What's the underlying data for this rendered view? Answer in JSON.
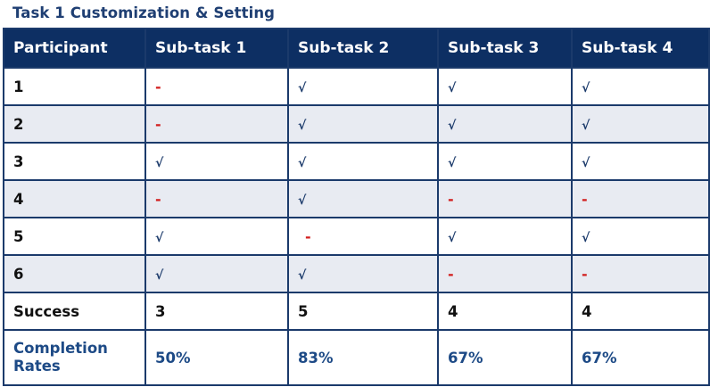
{
  "title": "Task 1 Customization & Setting",
  "headers": [
    "Participant",
    "Sub-task 1",
    "Sub-task 2",
    "Sub-task 3",
    "Sub-task 4"
  ],
  "rows": [
    {
      "participant": "1",
      "marks": [
        "-",
        "√",
        "√",
        "√"
      ]
    },
    {
      "participant": "2",
      "marks": [
        "-",
        "√",
        "√",
        "√"
      ]
    },
    {
      "participant": "3",
      "marks": [
        "√",
        "√",
        "√",
        "√"
      ]
    },
    {
      "participant": "4",
      "marks": [
        "-",
        "√",
        "-",
        "-"
      ]
    },
    {
      "participant": "5",
      "marks": [
        "√",
        "-",
        "√",
        "√"
      ]
    },
    {
      "participant": "6",
      "marks": [
        "√",
        "√",
        "-",
        "-"
      ]
    }
  ],
  "success": {
    "label": "Success",
    "values": [
      "3",
      "5",
      "4",
      "4"
    ]
  },
  "completion": {
    "label_line1": "Completion",
    "label_line2": "Rates",
    "values": [
      "50%",
      "83%",
      "67%",
      "67%"
    ]
  },
  "colors": {
    "header_bg": "#0d2f63",
    "title": "#1f3f73",
    "check": "#1b3a6b",
    "dash": "#d21f1f",
    "completion_text": "#1d4a86",
    "alt_row_bg": "#e8ebf2"
  }
}
